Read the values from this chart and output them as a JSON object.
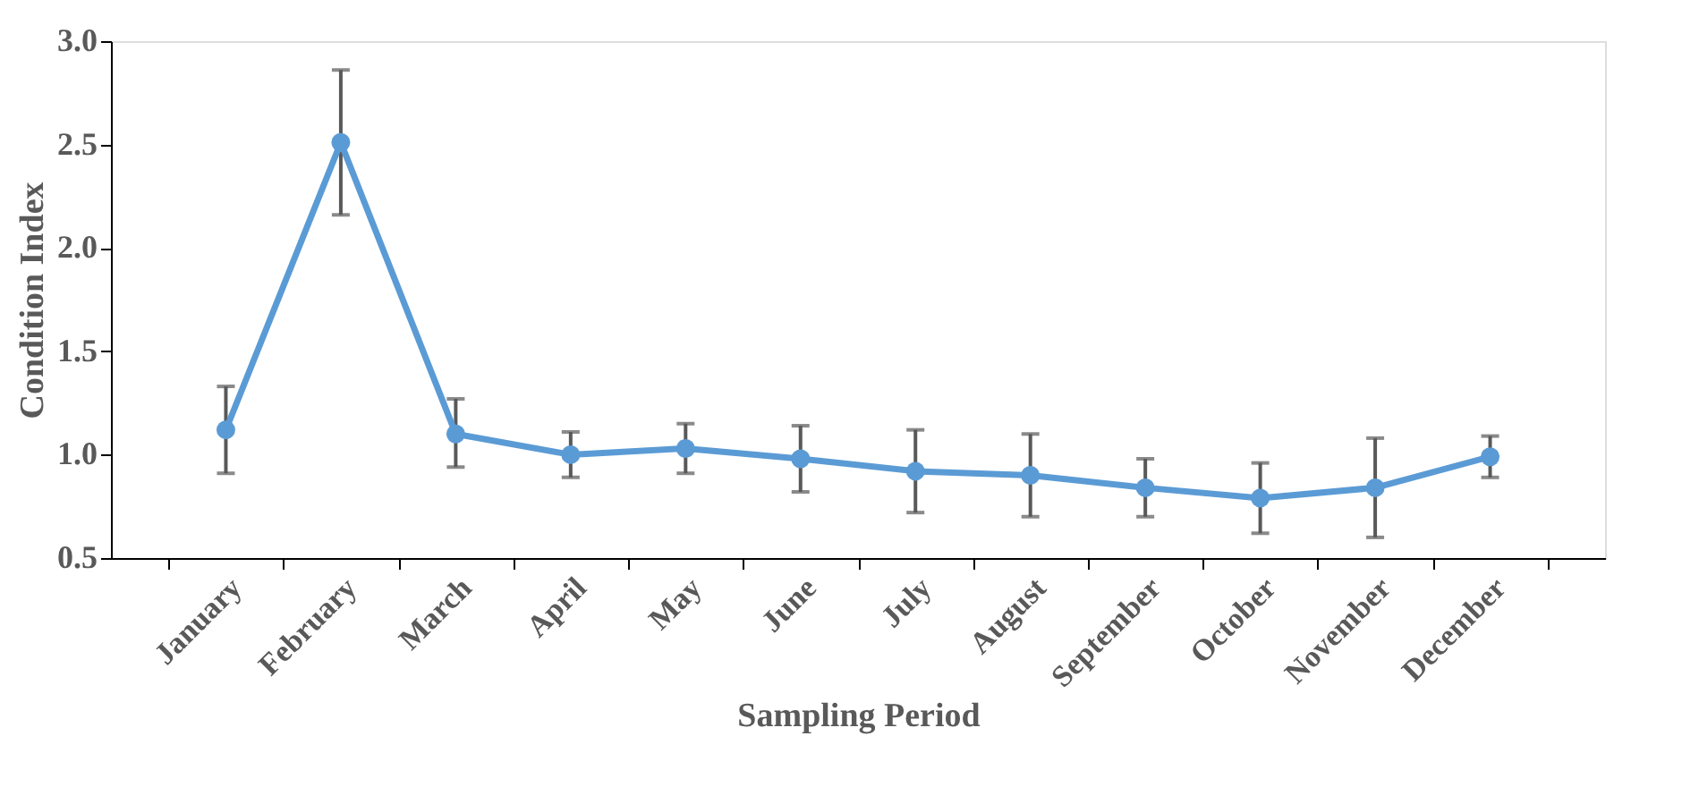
{
  "chart_data": {
    "type": "line",
    "xlabel": "Sampling Period",
    "ylabel": "Condition Index",
    "categories": [
      "January",
      "February",
      "March",
      "April",
      "May",
      "June",
      "July",
      "August",
      "September",
      "October",
      "November",
      "December"
    ],
    "series": [
      {
        "color": "#5b9bd5",
        "values": [
          1.12,
          2.51,
          1.1,
          1.0,
          1.03,
          0.98,
          0.92,
          0.9,
          0.84,
          0.79,
          0.84,
          0.99
        ],
        "errors": [
          [
            0.91,
            1.33
          ],
          [
            2.16,
            2.86
          ],
          [
            0.94,
            1.27
          ],
          [
            0.89,
            1.11
          ],
          [
            0.91,
            1.15
          ],
          [
            0.82,
            1.14
          ],
          [
            0.72,
            1.12
          ],
          [
            0.7,
            1.1
          ],
          [
            0.7,
            0.98
          ],
          [
            0.62,
            0.96
          ],
          [
            0.6,
            1.08
          ],
          [
            0.89,
            1.09
          ]
        ]
      }
    ],
    "ylim": [
      0.5,
      3.0
    ],
    "yticks": [
      {
        "value": 0.5,
        "label": "0.5"
      },
      {
        "value": 1.0,
        "label": "1.0"
      },
      {
        "value": 1.5,
        "label": "1.5"
      },
      {
        "value": 2.0,
        "label": "2.0"
      },
      {
        "value": 2.5,
        "label": "2.5"
      },
      {
        "value": 3.0,
        "label": "3.0"
      }
    ],
    "grid": false,
    "marker": "circle",
    "line_style": "solid"
  }
}
